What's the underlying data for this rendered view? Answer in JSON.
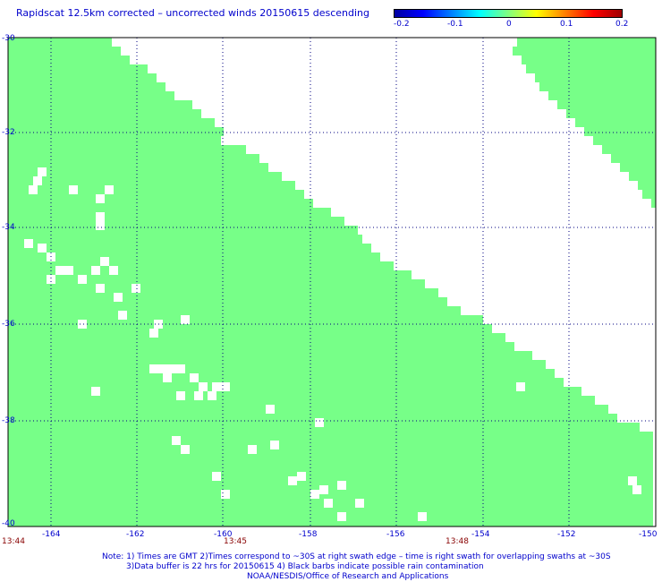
{
  "title": "Rapidscat 12.5km corrected – uncorrected winds 20150615 descending",
  "colorbar": {
    "ticks": [
      "-0.2",
      "-0.1",
      "0",
      "0.1",
      "0.2"
    ],
    "colors": [
      "#0000a0",
      "#0000ff",
      "#0080ff",
      "#00ffff",
      "#80ff80",
      "#ffff00",
      "#ff8000",
      "#ff0000",
      "#a00000"
    ]
  },
  "map": {
    "lat_labels": [
      "-30",
      "-32",
      "-34",
      "-36",
      "-38",
      "-40"
    ],
    "lon_labels": [
      "-164",
      "-162",
      "-160",
      "-158",
      "-156",
      "-154",
      "-152",
      "-150"
    ],
    "times": [
      "13:44",
      "13:45",
      "13:48"
    ],
    "swath_color": "#77ff88",
    "grid_color": "#000080"
  },
  "notes": {
    "line1": "Note: 1) Times are GMT 2)Times correspond to ~30S at right swath edge – time is right swath for overlapping swaths at ~30S",
    "line2": "3)Data buffer is 22 hrs for 20150615 4) Black barbs indicate possible rain contamination",
    "line3": "NOAA/NESDIS/Office of Research and Applications"
  }
}
